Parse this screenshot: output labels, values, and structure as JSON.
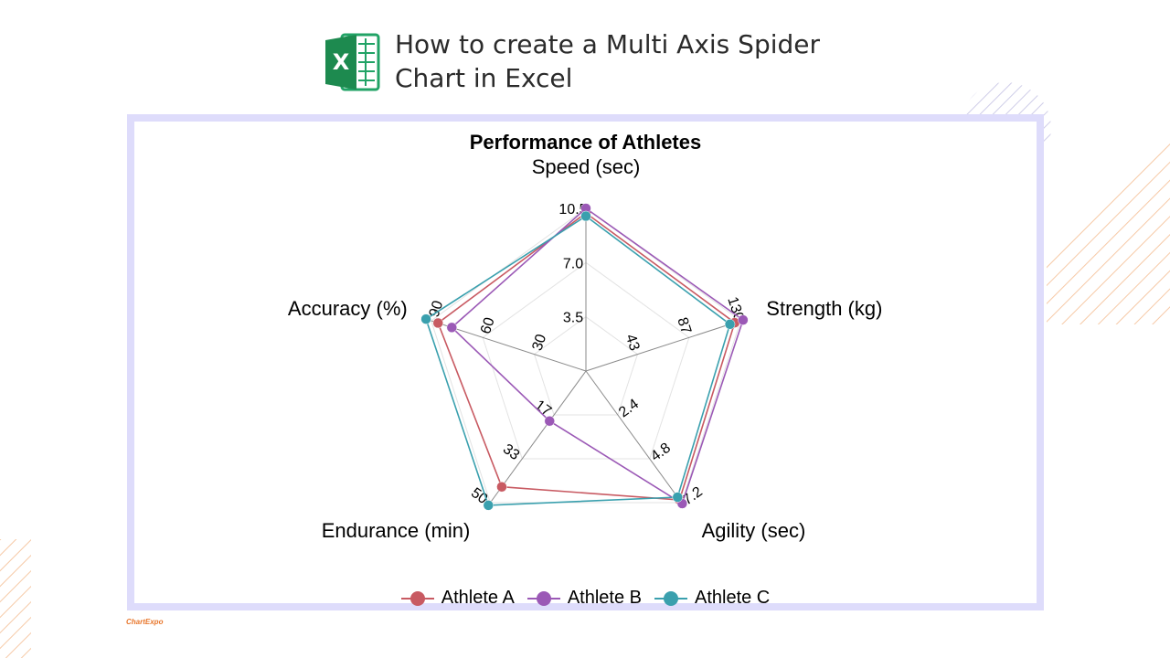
{
  "header": {
    "title": "How to create a Multi Axis Spider Chart in Excel",
    "logo_icon": "excel-icon"
  },
  "brand": {
    "text": "ChartExpo"
  },
  "colors": {
    "frame": "#dedcfb",
    "grid": "#e3e3e3",
    "axis": "#8a8a8a",
    "deco_orange": "#f6c9a6",
    "deco_purple": "#cfcde8"
  },
  "chart_data": {
    "type": "radar",
    "title": "Performance of Athletes",
    "axes": [
      {
        "label": "Speed (sec)",
        "max": 10.5,
        "ticks": [
          "3.5",
          "7.0",
          "10.5"
        ]
      },
      {
        "label": "Strength (kg)",
        "max": 130,
        "ticks": [
          "43",
          "87",
          "130"
        ]
      },
      {
        "label": "Agility (sec)",
        "max": 7.2,
        "ticks": [
          "2.4",
          "4.8",
          "7.2"
        ]
      },
      {
        "label": "Endurance (min)",
        "max": 50,
        "ticks": [
          "17",
          "33",
          "50"
        ]
      },
      {
        "label": "Accuracy (%)",
        "max": 90,
        "ticks": [
          "30",
          "60",
          "90"
        ]
      }
    ],
    "grid_levels": 3,
    "series": [
      {
        "name": "Athlete A",
        "color": "#c85a62",
        "values": [
          10.2,
          125,
          7.05,
          44,
          86
        ]
      },
      {
        "name": "Athlete B",
        "color": "#9b59b6",
        "values": [
          10.5,
          132,
          7.25,
          19,
          78
        ]
      },
      {
        "name": "Athlete C",
        "color": "#3aa0ae",
        "values": [
          10.0,
          121,
          6.9,
          51,
          93
        ]
      }
    ],
    "legend_position": "bottom"
  }
}
